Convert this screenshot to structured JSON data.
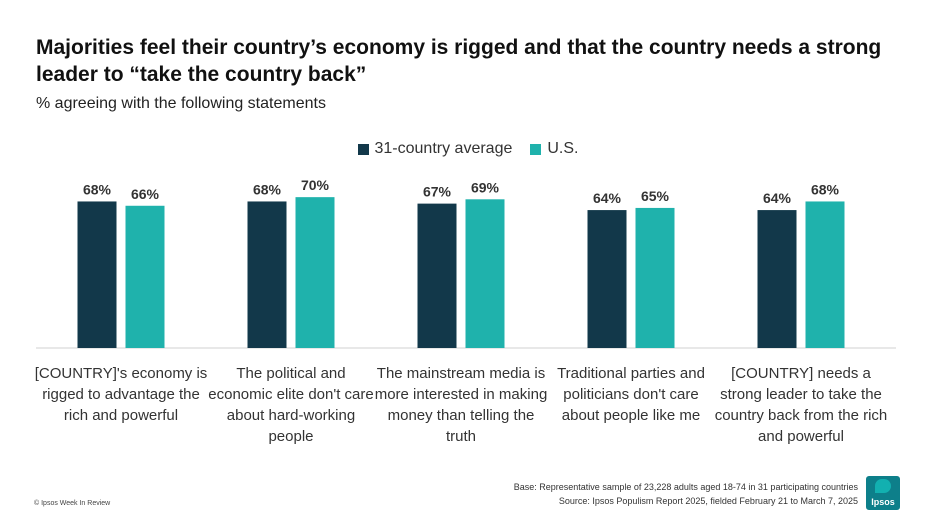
{
  "title": "Majorities feel their country’s economy is rigged and that the country needs a strong leader to “take the country back”",
  "subtitle": "% agreeing with the following statements",
  "colors": {
    "avg": "#12384a",
    "us": "#1fb2ac"
  },
  "legend": {
    "avg": "31-country average",
    "us": "U.S."
  },
  "chart_data": {
    "type": "bar",
    "categories": [
      "[COUNTRY]'s economy is rigged to advantage the rich and powerful",
      "The political and economic elite don't care about hard-working people",
      "The mainstream media is more interested in making money than telling the truth",
      "Traditional parties and politicians don't care about people like me",
      "[COUNTRY] needs a strong leader to take the country back from the rich and powerful"
    ],
    "series": [
      {
        "name": "31-country average",
        "values": [
          68,
          68,
          67,
          64,
          64
        ],
        "labels": [
          "68%",
          "68%",
          "67%",
          "64%",
          "64%"
        ]
      },
      {
        "name": "U.S.",
        "values": [
          66,
          70,
          69,
          65,
          68
        ],
        "labels": [
          "66%",
          "70%",
          "69%",
          "65%",
          "68%"
        ]
      }
    ],
    "ylim": [
      0,
      100
    ],
    "legend_position": "top-center"
  },
  "footer": {
    "left": "© Ipsos Week In Review",
    "base": "Base: Representative sample of 23,228 adults aged 18-74 in 31 participating countries",
    "source": "Source: Ipsos Populism Report 2025, fielded February 21 to March 7, 2025"
  },
  "logo_text": "Ipsos"
}
